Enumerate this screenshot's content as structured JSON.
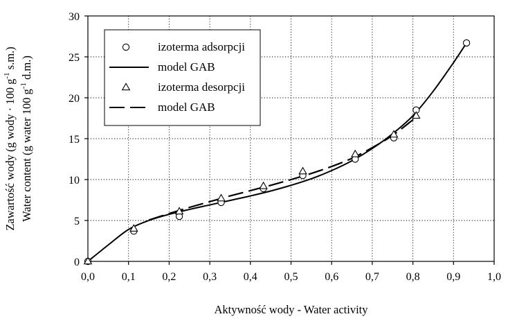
{
  "chart_data": {
    "type": "scatter",
    "title": "",
    "xlabel": "Aktywność wody - Water activity",
    "ylabel_line1": "Zawartość wody (g wody · 100 g",
    "ylabel_line1_sup": "-1",
    "ylabel_line1_tail": " s.m.)",
    "ylabel_line2": "Water content (g water 100 g",
    "ylabel_line2_sup": "-1",
    "ylabel_line2_tail": " d.m.)",
    "xlim": [
      0,
      1
    ],
    "ylim": [
      0,
      30
    ],
    "x_ticks": [
      0,
      0.1,
      0.2,
      0.3,
      0.4,
      0.5,
      0.6,
      0.7,
      0.8,
      0.9,
      1.0
    ],
    "x_tick_labels": [
      "0,0",
      "0,1",
      "0,2",
      "0,3",
      "0,4",
      "0,5",
      "0,6",
      "0,7",
      "0,8",
      "0,9",
      "1,0"
    ],
    "y_ticks": [
      0,
      5,
      10,
      15,
      20,
      25,
      30
    ],
    "y_tick_labels": [
      "0",
      "5",
      "10",
      "15",
      "20",
      "25",
      "30"
    ],
    "grid": true,
    "legend_position": "top-left",
    "series": [
      {
        "name": "izoterma adsorpcji",
        "kind": "points",
        "marker": "circle",
        "x": [
          0.0,
          0.113,
          0.225,
          0.328,
          0.432,
          0.529,
          0.658,
          0.753,
          0.808,
          0.932
        ],
        "y": [
          0.0,
          3.7,
          5.5,
          7.2,
          8.9,
          10.5,
          12.5,
          15.1,
          18.5,
          26.7
        ]
      },
      {
        "name": "model GAB",
        "kind": "line",
        "style": "solid",
        "x": [
          0.0,
          0.05,
          0.1,
          0.15,
          0.2,
          0.25,
          0.3,
          0.35,
          0.4,
          0.45,
          0.5,
          0.55,
          0.6,
          0.65,
          0.7,
          0.75,
          0.8,
          0.85,
          0.9,
          0.932
        ],
        "y": [
          0.0,
          2.0,
          3.9,
          5.0,
          5.75,
          6.35,
          6.9,
          7.45,
          8.0,
          8.6,
          9.3,
          10.1,
          11.1,
          12.3,
          13.8,
          15.6,
          17.8,
          20.8,
          24.3,
          26.7
        ]
      },
      {
        "name": "izoterma desorpcji",
        "kind": "points",
        "marker": "triangle",
        "x": [
          0.0,
          0.113,
          0.225,
          0.328,
          0.432,
          0.529,
          0.658,
          0.753,
          0.808
        ],
        "y": [
          0.0,
          4.0,
          6.1,
          7.7,
          9.2,
          11.0,
          13.1,
          15.5,
          17.8
        ]
      },
      {
        "name": "model GAB",
        "kind": "line",
        "style": "dashed",
        "x": [
          0.15,
          0.2,
          0.25,
          0.3,
          0.35,
          0.4,
          0.45,
          0.5,
          0.55,
          0.6,
          0.65,
          0.7,
          0.75,
          0.8,
          0.81
        ],
        "y": [
          5.05,
          5.85,
          6.6,
          7.3,
          8.0,
          8.65,
          9.3,
          10.0,
          10.75,
          11.6,
          12.6,
          13.9,
          15.4,
          17.3,
          17.6
        ]
      }
    ]
  }
}
